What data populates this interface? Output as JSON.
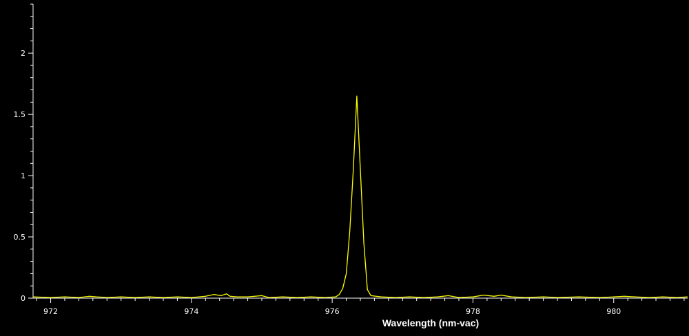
{
  "chart_data": {
    "type": "line",
    "title": "",
    "xlabel": "Wavelength (nm-vac)",
    "ylabel": "",
    "xlim": [
      971.75,
      981.05
    ],
    "ylim": [
      0,
      2.4
    ],
    "grid": false,
    "legend": "none",
    "x_ticks": [
      972,
      974,
      976,
      978,
      980
    ],
    "x_tick_labels": [
      "972",
      "974",
      "976",
      "978",
      "980"
    ],
    "y_ticks": [
      0,
      0.5,
      1,
      1.5,
      2
    ],
    "y_tick_labels": [
      "0",
      "0.5",
      "1",
      "1.5",
      "2"
    ],
    "colors": {
      "background": "#000000",
      "axis": "#ffffff",
      "line": "#ffff00"
    },
    "series": [
      {
        "x": [
          971.75,
          972.0,
          972.2,
          972.4,
          972.55,
          972.65,
          972.8,
          973.0,
          973.2,
          973.4,
          973.6,
          973.8,
          974.0,
          974.2,
          974.32,
          974.42,
          974.5,
          974.55,
          974.65,
          974.8,
          975.0,
          975.1,
          975.3,
          975.5,
          975.7,
          975.9,
          976.05,
          976.1,
          976.15,
          976.2,
          976.25,
          976.3,
          976.35,
          976.4,
          976.45,
          976.5,
          976.55,
          976.7,
          976.9,
          977.1,
          977.3,
          977.5,
          977.65,
          977.8,
          978.0,
          978.15,
          978.3,
          978.4,
          978.55,
          978.75,
          979.0,
          979.2,
          979.5,
          979.8,
          980.0,
          980.15,
          980.3,
          980.5,
          980.7,
          980.9,
          981.05
        ],
        "y": [
          0.01,
          0.005,
          0.01,
          0.005,
          0.015,
          0.01,
          0.005,
          0.01,
          0.005,
          0.01,
          0.005,
          0.01,
          0.005,
          0.015,
          0.03,
          0.02,
          0.035,
          0.015,
          0.01,
          0.01,
          0.02,
          0.005,
          0.01,
          0.005,
          0.01,
          0.005,
          0.01,
          0.03,
          0.08,
          0.2,
          0.55,
          1.05,
          1.65,
          1.05,
          0.45,
          0.07,
          0.02,
          0.01,
          0.005,
          0.01,
          0.005,
          0.01,
          0.02,
          0.005,
          0.01,
          0.025,
          0.015,
          0.025,
          0.01,
          0.005,
          0.01,
          0.005,
          0.01,
          0.005,
          0.01,
          0.015,
          0.01,
          0.005,
          0.01,
          0.005,
          0.01
        ]
      }
    ]
  }
}
